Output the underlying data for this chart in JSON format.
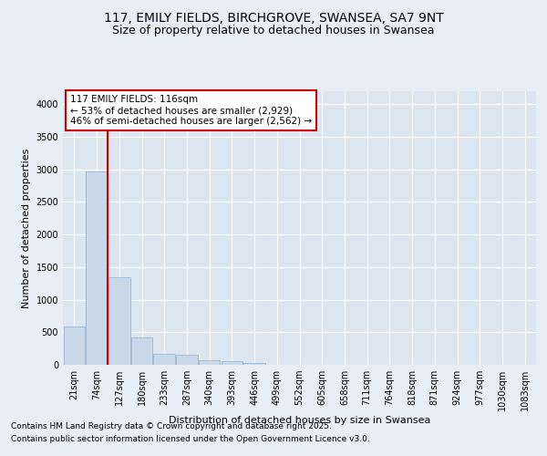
{
  "title_line1": "117, EMILY FIELDS, BIRCHGROVE, SWANSEA, SA7 9NT",
  "title_line2": "Size of property relative to detached houses in Swansea",
  "xlabel": "Distribution of detached houses by size in Swansea",
  "ylabel": "Number of detached properties",
  "categories": [
    "21sqm",
    "74sqm",
    "127sqm",
    "180sqm",
    "233sqm",
    "287sqm",
    "340sqm",
    "393sqm",
    "446sqm",
    "499sqm",
    "552sqm",
    "605sqm",
    "658sqm",
    "711sqm",
    "764sqm",
    "818sqm",
    "871sqm",
    "924sqm",
    "977sqm",
    "1030sqm",
    "1083sqm"
  ],
  "values": [
    590,
    2970,
    1340,
    420,
    175,
    155,
    65,
    55,
    25,
    0,
    0,
    0,
    0,
    0,
    0,
    0,
    0,
    0,
    0,
    0,
    0
  ],
  "bar_color": "#c9d9ea",
  "bar_edge_color": "#9ab8d0",
  "vline_color": "#cc0000",
  "vline_pos": 1.5,
  "annotation_text": "117 EMILY FIELDS: 116sqm\n← 53% of detached houses are smaller (2,929)\n46% of semi-detached houses are larger (2,562) →",
  "annotation_box_edgecolor": "#cc0000",
  "annotation_bg": "#ffffff",
  "ylim": [
    0,
    4200
  ],
  "yticks": [
    0,
    500,
    1000,
    1500,
    2000,
    2500,
    3000,
    3500,
    4000
  ],
  "bg_color": "#e8eef5",
  "plot_bg_color": "#dce6f0",
  "grid_color": "#ffffff",
  "footer_line1": "Contains HM Land Registry data © Crown copyright and database right 2025.",
  "footer_line2": "Contains public sector information licensed under the Open Government Licence v3.0.",
  "title_fontsize": 10,
  "subtitle_fontsize": 9,
  "label_fontsize": 8,
  "tick_fontsize": 7,
  "annotation_fontsize": 7.5,
  "footer_fontsize": 6.5
}
